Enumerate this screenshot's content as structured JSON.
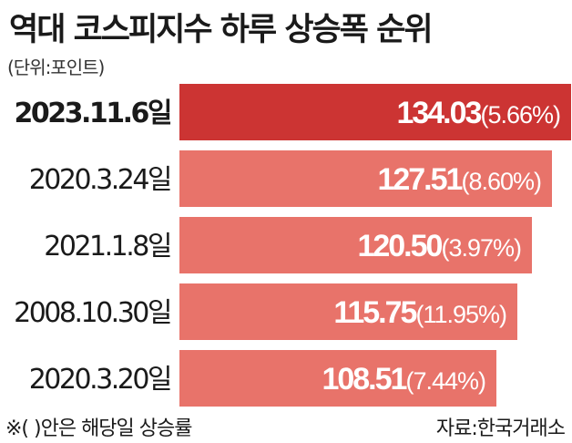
{
  "header": {
    "title": "역대 코스피지수 하루 상승폭 순위",
    "unit": "(단위:포인트)"
  },
  "footer": {
    "note": "※(   )안은 해당일 상승률",
    "source": "자료:한국거래소"
  },
  "colors": {
    "highlight_bar": "#cc3433",
    "bar": "#e8736a",
    "label": "#ffffff"
  },
  "chart_data": {
    "type": "bar",
    "orientation": "horizontal",
    "categories": [
      "2023.11.6일",
      "2020.3.24일",
      "2021.1.8일",
      "2008.10.30일",
      "2020.3.20일"
    ],
    "values": [
      134.03,
      127.51,
      120.5,
      115.75,
      108.51
    ],
    "value_labels": [
      "134.03",
      "127.51",
      "120.50",
      "115.75",
      "108.51"
    ],
    "pct_labels": [
      "(5.66%)",
      "(8.60%)",
      "(3.97%)",
      "(11.95%)",
      "(7.44%)"
    ],
    "highlight_index": 0,
    "title": "역대 코스피지수 하루 상승폭 순위",
    "xlabel": "",
    "ylabel": "",
    "grid": false,
    "legend": "none"
  }
}
